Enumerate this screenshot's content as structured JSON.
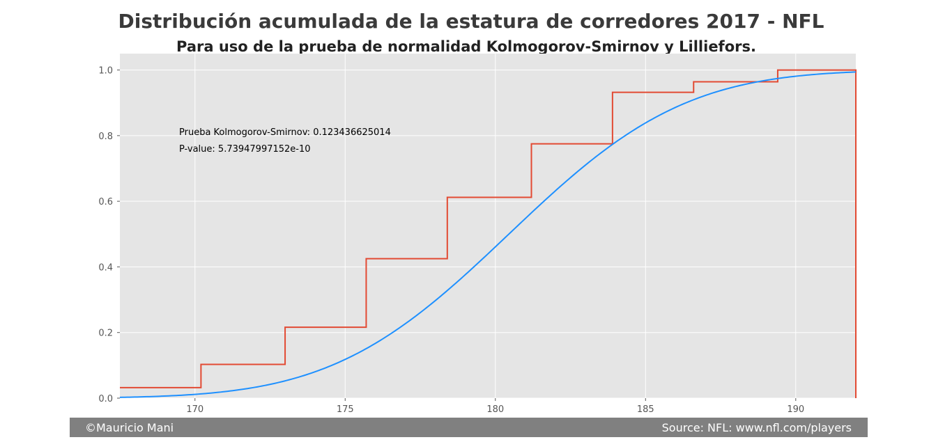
{
  "chart_data": {
    "type": "line",
    "title": "Distribución acumulada de la estatura de corredores 2017 - NFL",
    "subtitle": "Para uso de la prueba de normalidad Kolmogorov-Smirnov y Lilliefors.",
    "xlabel": "",
    "ylabel": "",
    "xlim": [
      167.5,
      192
    ],
    "ylim": [
      0,
      1.05
    ],
    "xticks": [
      170,
      175,
      180,
      185,
      190
    ],
    "yticks": [
      0.0,
      0.2,
      0.4,
      0.6,
      0.8,
      1.0
    ],
    "grid": true,
    "series": [
      {
        "kind": "step",
        "color": "#e24a33",
        "x": [
          167.5,
          170.2,
          173.0,
          175.7,
          178.4,
          181.2,
          183.9,
          186.6,
          189.4,
          192.0
        ],
        "y": [
          0.032,
          0.103,
          0.216,
          0.425,
          0.612,
          0.775,
          0.932,
          0.964,
          1.0,
          1.0
        ]
      },
      {
        "kind": "normal_cdf",
        "color": "#1e90ff",
        "mean": 180.45,
        "sd": 4.6,
        "x_range": [
          167.5,
          192
        ]
      }
    ],
    "annotations": [
      "Prueba Kolmogorov-Smirnov: 0.123436625014",
      "P-value: 5.73947997152e-10"
    ]
  },
  "footer": {
    "left": "©Mauricio Mani",
    "right": "Source: NFL: www.nfl.com/players"
  }
}
